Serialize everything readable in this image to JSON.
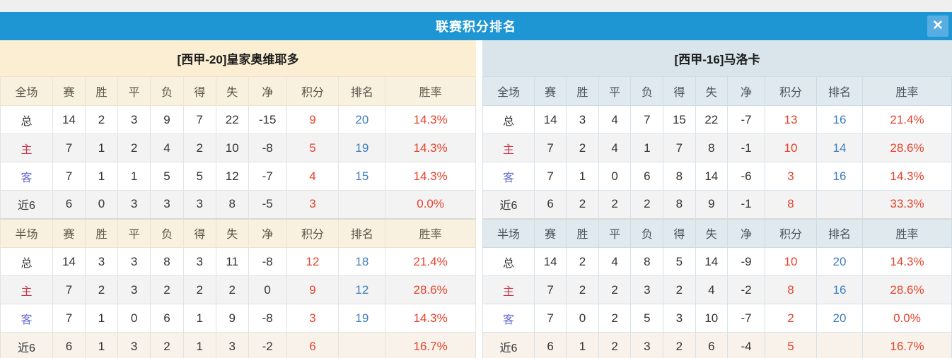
{
  "dialog": {
    "title": "联赛积分排名",
    "close_icon": "✕"
  },
  "columns": [
    "赛",
    "胜",
    "平",
    "负",
    "得",
    "失",
    "净",
    "积分",
    "排名",
    "胜率"
  ],
  "section_labels": {
    "full": "全场",
    "half": "半场"
  },
  "teams": [
    {
      "name": "[西甲-20]皇家奥维耶多",
      "full": {
        "rows": [
          {
            "label": "总",
            "type": "total",
            "values": [
              "14",
              "2",
              "3",
              "9",
              "7",
              "22",
              "-15"
            ],
            "points": "9",
            "rank": "20",
            "rate": "14.3%"
          },
          {
            "label": "主",
            "type": "home",
            "values": [
              "7",
              "1",
              "2",
              "4",
              "2",
              "10",
              "-8"
            ],
            "points": "5",
            "rank": "19",
            "rate": "14.3%"
          },
          {
            "label": "客",
            "type": "away",
            "values": [
              "7",
              "1",
              "1",
              "5",
              "5",
              "12",
              "-7"
            ],
            "points": "4",
            "rank": "15",
            "rate": "14.3%"
          },
          {
            "label": "近6",
            "type": "last6",
            "values": [
              "6",
              "0",
              "3",
              "3",
              "3",
              "8",
              "-5"
            ],
            "points": "3",
            "rank": "",
            "rate": "0.0%"
          }
        ]
      },
      "half": {
        "rows": [
          {
            "label": "总",
            "type": "total",
            "values": [
              "14",
              "3",
              "3",
              "8",
              "3",
              "11",
              "-8"
            ],
            "points": "12",
            "rank": "18",
            "rate": "21.4%"
          },
          {
            "label": "主",
            "type": "home",
            "values": [
              "7",
              "2",
              "3",
              "2",
              "2",
              "2",
              "0"
            ],
            "points": "9",
            "rank": "12",
            "rate": "28.6%"
          },
          {
            "label": "客",
            "type": "away",
            "values": [
              "7",
              "1",
              "0",
              "6",
              "1",
              "9",
              "-8"
            ],
            "points": "3",
            "rank": "19",
            "rate": "14.3%"
          },
          {
            "label": "近6",
            "type": "last6",
            "values": [
              "6",
              "1",
              "3",
              "2",
              "1",
              "3",
              "-2"
            ],
            "points": "6",
            "rank": "",
            "rate": "16.7%"
          }
        ]
      }
    },
    {
      "name": "[西甲-16]马洛卡",
      "full": {
        "rows": [
          {
            "label": "总",
            "type": "total",
            "values": [
              "14",
              "3",
              "4",
              "7",
              "15",
              "22",
              "-7"
            ],
            "points": "13",
            "rank": "16",
            "rate": "21.4%"
          },
          {
            "label": "主",
            "type": "home",
            "values": [
              "7",
              "2",
              "4",
              "1",
              "7",
              "8",
              "-1"
            ],
            "points": "10",
            "rank": "14",
            "rate": "28.6%"
          },
          {
            "label": "客",
            "type": "away",
            "values": [
              "7",
              "1",
              "0",
              "6",
              "8",
              "14",
              "-6"
            ],
            "points": "3",
            "rank": "16",
            "rate": "14.3%"
          },
          {
            "label": "近6",
            "type": "last6",
            "values": [
              "6",
              "2",
              "2",
              "2",
              "8",
              "9",
              "-1"
            ],
            "points": "8",
            "rank": "",
            "rate": "33.3%"
          }
        ]
      },
      "half": {
        "rows": [
          {
            "label": "总",
            "type": "total",
            "values": [
              "14",
              "2",
              "4",
              "8",
              "5",
              "14",
              "-9"
            ],
            "points": "10",
            "rank": "20",
            "rate": "14.3%"
          },
          {
            "label": "主",
            "type": "home",
            "values": [
              "7",
              "2",
              "2",
              "3",
              "2",
              "4",
              "-2"
            ],
            "points": "8",
            "rank": "16",
            "rate": "28.6%"
          },
          {
            "label": "客",
            "type": "away",
            "values": [
              "7",
              "0",
              "2",
              "5",
              "3",
              "10",
              "-7"
            ],
            "points": "2",
            "rank": "20",
            "rate": "0.0%"
          },
          {
            "label": "近6",
            "type": "last6",
            "values": [
              "6",
              "1",
              "2",
              "3",
              "2",
              "6",
              "-4"
            ],
            "points": "5",
            "rank": "",
            "rate": "16.7%"
          }
        ]
      }
    }
  ],
  "colors": {
    "title_bar": "#1e96d4",
    "close_button": "#58aee3",
    "team_header_left": "#fbeed2",
    "team_header_right": "#d9e5ea",
    "table_header_left": "#f8f1e0",
    "table_header_right": "#dfe9ee",
    "row_alt": "#f3f3f3",
    "points_red": "#e5432d",
    "rank_blue": "#3d7ebe",
    "home_label": "#c9384c",
    "away_label": "#6a6fd0"
  }
}
